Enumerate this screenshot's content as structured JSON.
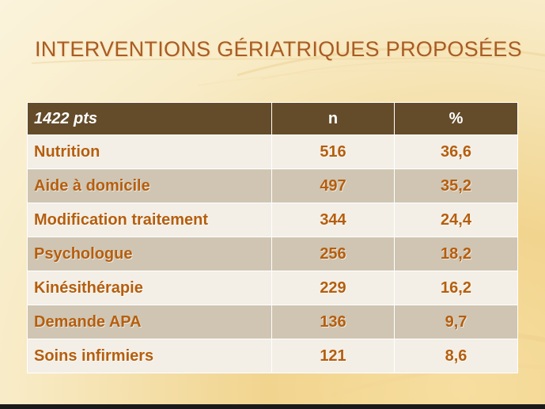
{
  "slide": {
    "title": "INTERVENTIONS GÉRIATRIQUES PROPOSÉES"
  },
  "table": {
    "headers": [
      "1422 pts",
      "n",
      "%"
    ],
    "rows": [
      {
        "label": "Nutrition",
        "n": "516",
        "pct": "36,6"
      },
      {
        "label": "Aide à domicile",
        "n": "497",
        "pct": "35,2"
      },
      {
        "label": "Modification traitement",
        "n": "344",
        "pct": "24,4"
      },
      {
        "label": "Psychologue",
        "n": "256",
        "pct": "18,2"
      },
      {
        "label": "Kinésithérapie",
        "n": "229",
        "pct": "16,2"
      },
      {
        "label": "Demande APA",
        "n": "136",
        "pct": "9,7"
      },
      {
        "label": "Soins infirmiers",
        "n": "121",
        "pct": "8,6"
      }
    ]
  },
  "colors": {
    "title": "#a85c25",
    "header_bg": "#644c2a",
    "row_light": "#f3efe6",
    "row_dark": "#cfc5b2",
    "cell_text": "#b55e0e"
  }
}
